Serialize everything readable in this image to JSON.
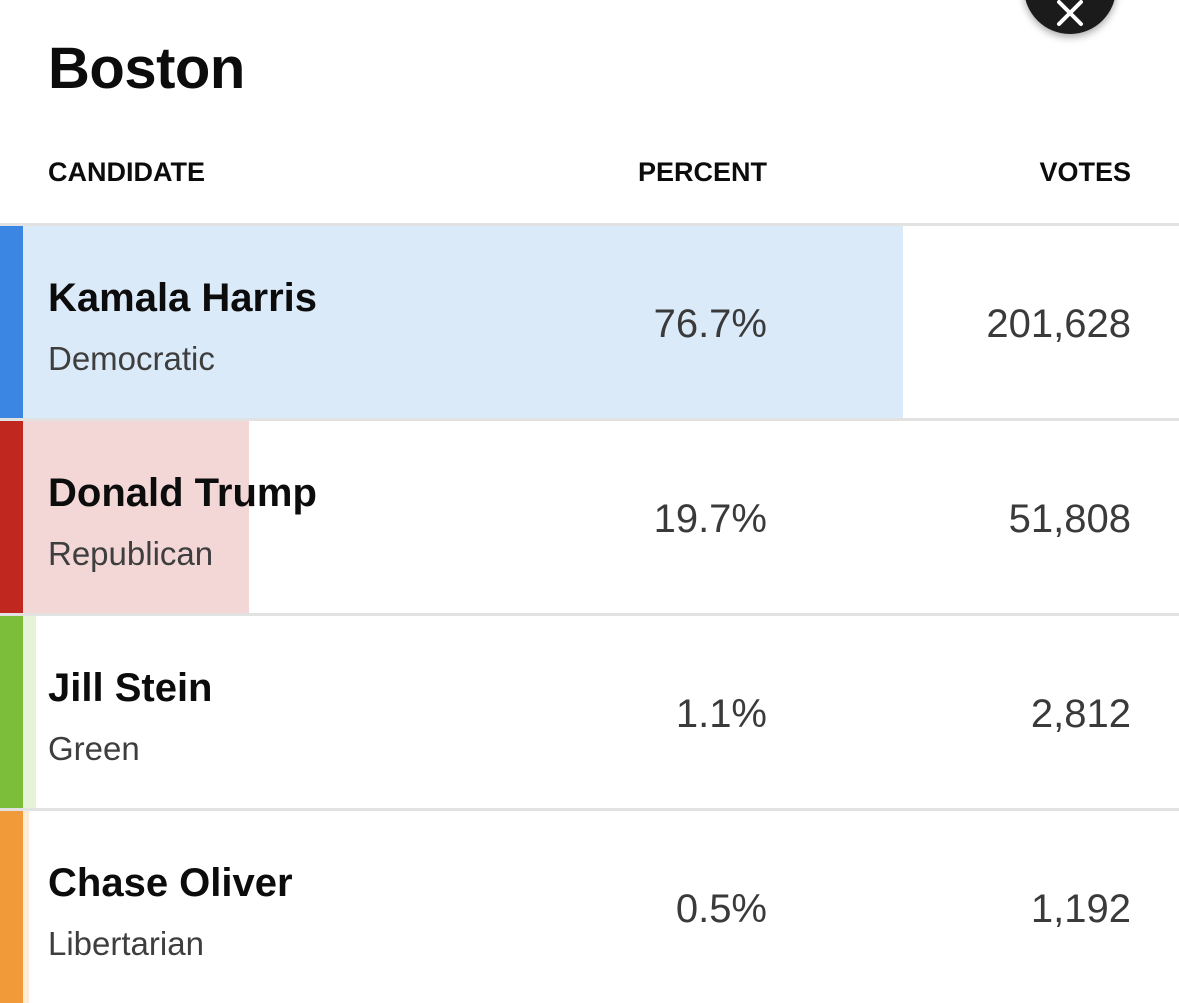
{
  "page_title": "Boston",
  "columns": {
    "candidate": "CANDIDATE",
    "percent": "PERCENT",
    "votes": "VOTES"
  },
  "candidates": [
    {
      "name": "Kamala Harris",
      "party": "Democratic",
      "percent": "76.7%",
      "votes": "201,628",
      "share": 0.767,
      "party_color": "#3b86e2",
      "fill_color": "#dbeaf9"
    },
    {
      "name": "Donald Trump",
      "party": "Republican",
      "percent": "19.7%",
      "votes": "51,808",
      "share": 0.197,
      "party_color": "#c0271f",
      "fill_color": "#f3d7d7"
    },
    {
      "name": "Jill Stein",
      "party": "Green",
      "percent": "1.1%",
      "votes": "2,812",
      "share": 0.011,
      "party_color": "#7cbd3a",
      "fill_color": "#e6f3d9"
    },
    {
      "name": "Chase Oliver",
      "party": "Libertarian",
      "percent": "0.5%",
      "votes": "1,192",
      "share": 0.005,
      "party_color": "#f09a3a",
      "fill_color": "#fdebd6"
    }
  ],
  "icons": {
    "fab": "close-icon"
  }
}
